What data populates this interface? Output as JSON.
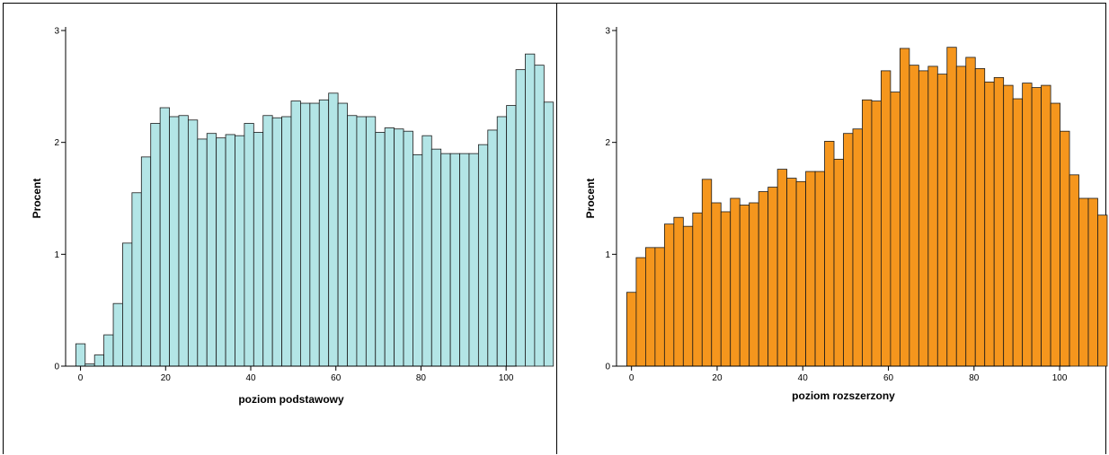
{
  "chart_data": [
    {
      "type": "bar",
      "xlabel": "poziom podstawowy",
      "ylabel": "Procent",
      "ylim": [
        0,
        3
      ],
      "xlim": [
        -3.5,
        102.5
      ],
      "xticks": [
        "0",
        "20",
        "40",
        "60",
        "80",
        "100"
      ],
      "yticks": [
        "0",
        "1",
        "2",
        "3"
      ],
      "bin_width": 2.2,
      "bin_start": -1.1,
      "grid": false,
      "colors": {
        "bar_fill": "#b3e5e6",
        "bar_stroke": "#1a1a1a"
      },
      "values": [
        0.2,
        0.02,
        0.1,
        0.28,
        0.56,
        1.1,
        1.55,
        1.87,
        2.17,
        2.31,
        2.23,
        2.24,
        2.2,
        2.03,
        2.08,
        2.04,
        2.07,
        2.06,
        2.17,
        2.09,
        2.24,
        2.22,
        2.23,
        2.37,
        2.35,
        2.35,
        2.38,
        2.44,
        2.35,
        2.24,
        2.23,
        2.23,
        2.09,
        2.13,
        2.12,
        2.1,
        1.89,
        2.06,
        1.94,
        1.9,
        1.9,
        1.9,
        1.9,
        1.98,
        2.11,
        2.23,
        2.33,
        2.65,
        2.79,
        2.69,
        2.36
      ]
    },
    {
      "type": "bar",
      "xlabel": "poziom rozszerzony",
      "ylabel": "Procent",
      "ylim": [
        0,
        3
      ],
      "xlim": [
        -3.5,
        102.5
      ],
      "xticks": [
        "0",
        "20",
        "40",
        "60",
        "80",
        "100"
      ],
      "yticks": [
        "0",
        "1",
        "2",
        "3"
      ],
      "bin_width": 2.2,
      "bin_start": -1.1,
      "grid": false,
      "colors": {
        "bar_fill": "#f5961d",
        "bar_stroke": "#1a1a1a"
      },
      "values": [
        0.66,
        0.97,
        1.06,
        1.06,
        1.27,
        1.33,
        1.25,
        1.37,
        1.67,
        1.46,
        1.38,
        1.5,
        1.44,
        1.46,
        1.56,
        1.6,
        1.76,
        1.68,
        1.65,
        1.74,
        1.74,
        2.01,
        1.85,
        2.08,
        2.12,
        2.38,
        2.37,
        2.64,
        2.45,
        2.84,
        2.69,
        2.64,
        2.68,
        2.61,
        2.85,
        2.68,
        2.76,
        2.66,
        2.54,
        2.58,
        2.51,
        2.39,
        2.53,
        2.49,
        2.51,
        2.35,
        2.1,
        1.71,
        1.5,
        1.5,
        1.35
      ]
    }
  ]
}
